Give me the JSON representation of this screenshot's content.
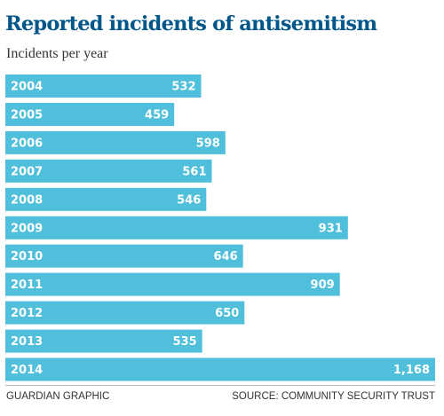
{
  "chart_data": {
    "type": "bar",
    "orientation": "horizontal",
    "title": "Reported incidents of antisemitism",
    "subtitle": "Incidents per year",
    "categories": [
      "2004",
      "2005",
      "2006",
      "2007",
      "2008",
      "2009",
      "2010",
      "2011",
      "2012",
      "2013",
      "2014"
    ],
    "values": [
      532,
      459,
      598,
      561,
      546,
      931,
      646,
      909,
      650,
      535,
      1168
    ],
    "value_labels": [
      "532",
      "459",
      "598",
      "561",
      "546",
      "931",
      "646",
      "909",
      "650",
      "535",
      "1,168"
    ],
    "bar_color": "#4fbfdb",
    "grid": false,
    "legend": "none"
  },
  "colors": {
    "title": "#005689",
    "bar": "#4fbfdb",
    "bar_text": "#ffffff"
  },
  "footer": {
    "credit": "GUARDIAN GRAPHIC",
    "source": "SOURCE: COMMUNITY SECURITY TRUST"
  }
}
